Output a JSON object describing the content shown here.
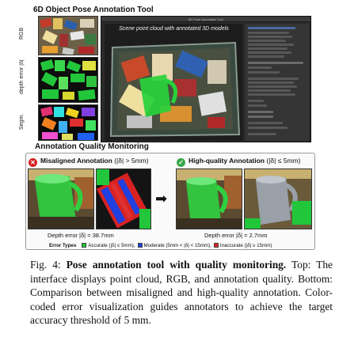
{
  "tool": {
    "title": "6D Object Pose Annotation Tool",
    "side_labels": [
      "RGB",
      "depth error |δ|",
      "Segm."
    ],
    "window_title": "6D Pose Annotation Tool",
    "viewport_caption": "Scene point cloud with annotated 3D models"
  },
  "monitoring": {
    "title": "Annotation Quality Monitoring",
    "misaligned": {
      "icon": "x-circle-icon",
      "label": "Misaligned Annotation",
      "condition": "(|δ| > 5mm)",
      "depth_error": "Depth error |δ| = 38.7mm"
    },
    "high_quality": {
      "icon": "check-circle-icon",
      "label": "High-quality Annotation",
      "condition": "(|δ| ≤ 5mm)",
      "depth_error": "Depth error |δ| = 2.7mm"
    },
    "legend": {
      "title": "Error Types",
      "items": [
        {
          "label": "Accurate (|δ| ≤ 5mm),",
          "color": "#22c63a"
        },
        {
          "label": "Moderate (5mm < |δ| < 15mm),",
          "color": "#2040e0"
        },
        {
          "label": "Inaccurate (|δ| ≥ 15mm)",
          "color": "#d82222"
        }
      ]
    }
  },
  "caption": {
    "label": "Fig. 4:",
    "bold_title": "Pose annotation tool with quality monitoring.",
    "text": "Top: The interface displays point cloud, RGB, and annotation quality. Bottom: Comparison between misaligned and high-quality annotation. Color-coded error visualization guides annotators to achieve the target accuracy threshold of 5 mm."
  },
  "colors": {
    "accurate": "#22c63a",
    "moderate": "#2040e0",
    "inaccurate": "#d82222",
    "tool_background": "#2b2b2b"
  }
}
